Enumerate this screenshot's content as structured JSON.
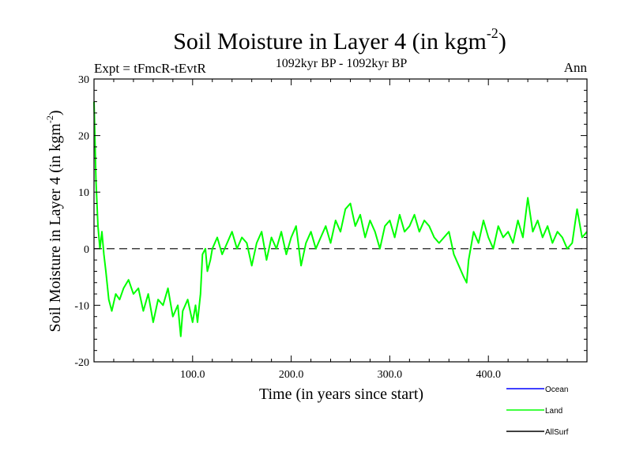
{
  "chart_data": {
    "type": "line",
    "title": "Soil Moisture in Layer 4 (in kgm",
    "title_sup": "-2",
    "title_close": ")",
    "subtitle": "1092kyr BP - 1092kyr BP",
    "left_label": "Expt = tFmcR-tEvtR",
    "right_label": "Ann",
    "xlabel": "Time (in years since start)",
    "ylabel": "Soil Moisture in Layer 4 (in kgm",
    "ylabel_sup": "-2",
    "ylabel_close": ")",
    "xlim": [
      0,
      500
    ],
    "ylim": [
      -20,
      30
    ],
    "x_ticks": [
      100,
      200,
      300,
      400
    ],
    "x_tick_labels": [
      "100.0",
      "200.0",
      "300.0",
      "400.0"
    ],
    "y_ticks": [
      -20,
      -10,
      0,
      10,
      20,
      30
    ],
    "y_tick_labels": [
      "-20",
      "-10",
      "0",
      "10",
      "20",
      "30"
    ],
    "reference_line": 0,
    "legend": [
      {
        "name": "Ocean",
        "color": "#0000ff"
      },
      {
        "name": "Land",
        "color": "#00ff00"
      },
      {
        "name": "AllSurf",
        "color": "#000000"
      }
    ],
    "series": [
      {
        "name": "Land",
        "color": "#00ff00",
        "x": [
          0,
          2,
          4,
          6,
          8,
          10,
          12,
          15,
          18,
          22,
          26,
          30,
          35,
          40,
          45,
          50,
          55,
          60,
          65,
          70,
          75,
          80,
          85,
          88,
          90,
          95,
          100,
          103,
          105,
          108,
          110,
          113,
          115,
          118,
          120,
          125,
          130,
          135,
          140,
          145,
          150,
          155,
          160,
          165,
          170,
          175,
          180,
          185,
          190,
          195,
          200,
          205,
          210,
          215,
          220,
          225,
          230,
          235,
          240,
          245,
          250,
          255,
          260,
          265,
          270,
          275,
          280,
          285,
          290,
          295,
          300,
          305,
          310,
          315,
          320,
          325,
          330,
          335,
          340,
          345,
          350,
          355,
          360,
          365,
          370,
          375,
          378,
          380,
          385,
          390,
          395,
          400,
          405,
          410,
          415,
          420,
          425,
          430,
          435,
          440,
          445,
          450,
          455,
          460,
          465,
          470,
          475,
          480,
          485,
          490,
          495,
          500
        ],
        "values": [
          26,
          12,
          4,
          0,
          3,
          -1,
          -4,
          -9,
          -11,
          -8,
          -9,
          -7,
          -5.5,
          -8,
          -7,
          -11,
          -8,
          -13,
          -9,
          -10,
          -7,
          -12,
          -10,
          -15.5,
          -11,
          -9,
          -13,
          -10,
          -13,
          -8,
          -1,
          0,
          -4,
          -2,
          0,
          2,
          -1,
          1,
          3,
          0,
          2,
          1,
          -3,
          1,
          3,
          -2,
          2,
          0,
          3,
          -1,
          2,
          4,
          -3,
          1,
          3,
          0,
          2,
          4,
          1,
          5,
          3,
          7,
          8,
          4,
          6,
          2,
          5,
          3,
          0,
          4,
          5,
          2,
          6,
          3,
          4,
          6,
          3,
          5,
          4,
          2,
          1,
          2,
          3,
          -1,
          -3,
          -5,
          -6,
          -2,
          3,
          1,
          5,
          2,
          0,
          4,
          2,
          3,
          1,
          5,
          2,
          9,
          3,
          5,
          2,
          4,
          1,
          3,
          2,
          0,
          1,
          7,
          2,
          3
        ]
      }
    ]
  }
}
